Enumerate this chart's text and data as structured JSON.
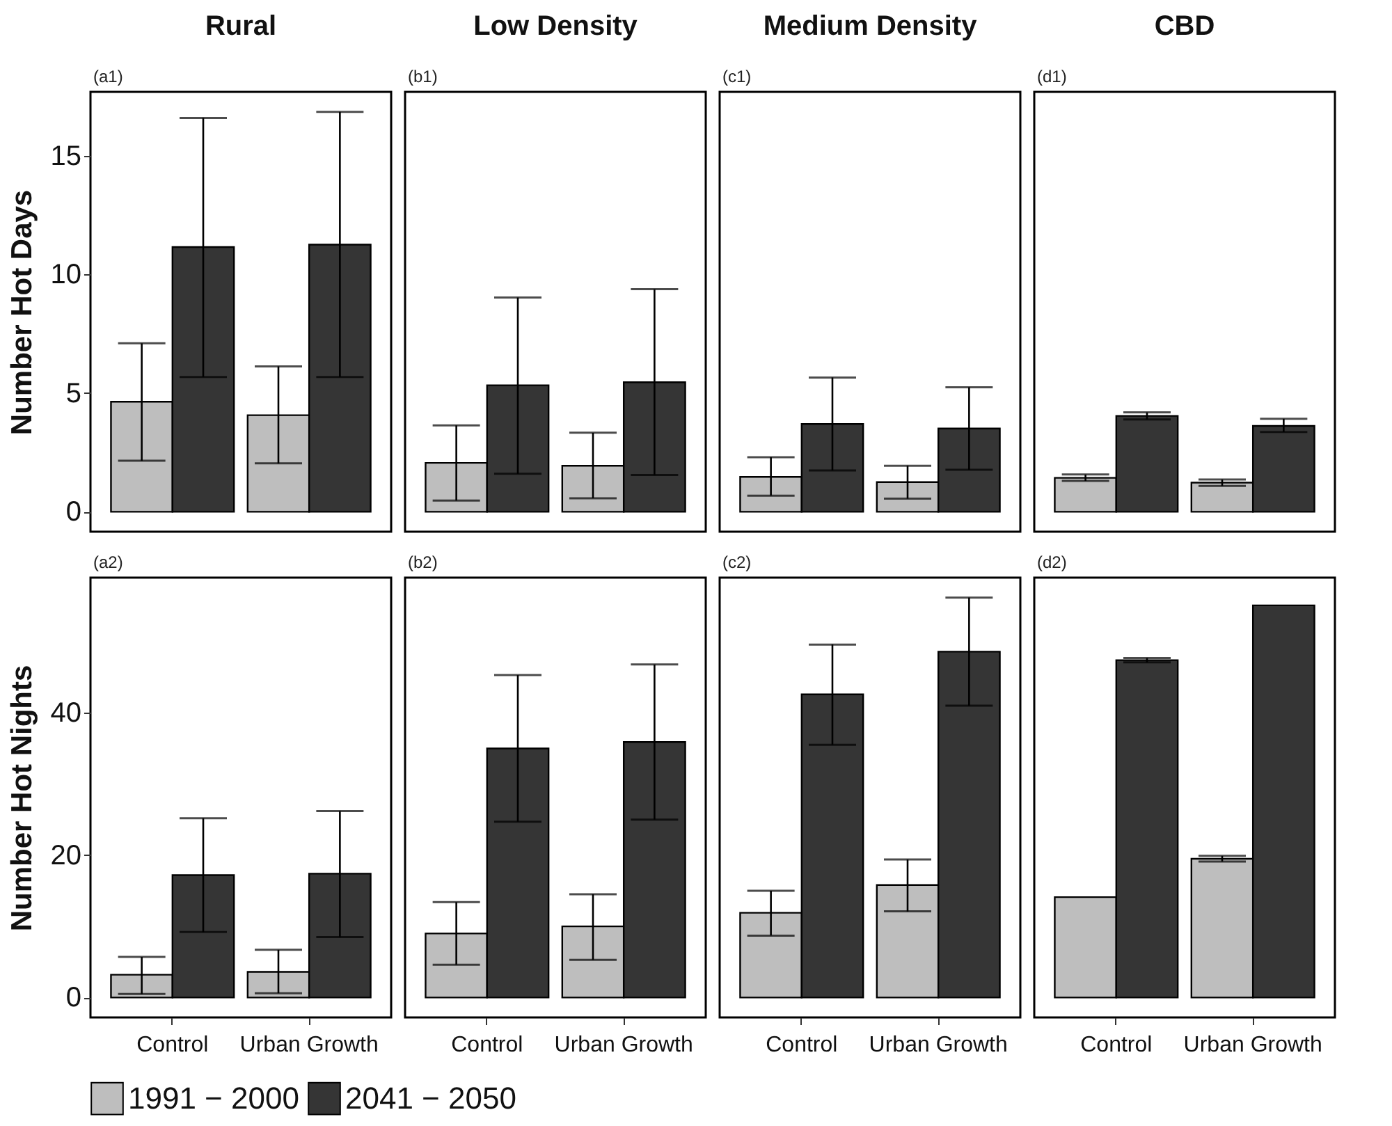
{
  "chart_data": [
    {
      "type": "bar",
      "title": "Rural",
      "ylabel": "Number Hot Days",
      "annotations": [
        "(a1)"
      ],
      "categories": [
        "Control",
        "Urban Growth"
      ],
      "ylim": [
        -0.84,
        17.7
      ],
      "yticks": [
        0,
        5,
        10,
        15
      ],
      "tick_labels": "y",
      "legend": "bottom",
      "series": [
        {
          "name": "1991 − 2000",
          "color": "#bebebe",
          "values": [
            4.64,
            4.07
          ],
          "errors": [
            [
              2.15,
              7.1
            ],
            [
              2.04,
              6.13
            ]
          ]
        },
        {
          "name": "2041 − 2050",
          "color": "#353535",
          "values": [
            11.16,
            11.26
          ],
          "errors": [
            [
              5.68,
              16.6
            ],
            [
              5.68,
              16.86
            ]
          ]
        }
      ]
    },
    {
      "type": "bar",
      "title": "Low Density",
      "annotations": [
        "(b1)"
      ],
      "categories": [
        "Control",
        "Urban Growth"
      ],
      "ylim": [
        -0.84,
        17.7
      ],
      "yticks": [
        0,
        5,
        10,
        15
      ],
      "tick_labels": false,
      "legend": "bottom",
      "series": [
        {
          "name": "1991 − 2000",
          "color": "#bebebe",
          "values": [
            2.06,
            1.94
          ],
          "errors": [
            [
              0.47,
              3.64
            ],
            [
              0.57,
              3.33
            ]
          ]
        },
        {
          "name": "2041 − 2050",
          "color": "#353535",
          "values": [
            5.33,
            5.46
          ],
          "errors": [
            [
              1.6,
              9.03
            ],
            [
              1.55,
              9.38
            ]
          ]
        }
      ]
    },
    {
      "type": "bar",
      "title": "Medium Density",
      "annotations": [
        "(c1)"
      ],
      "categories": [
        "Control",
        "Urban Growth"
      ],
      "ylim": [
        -0.84,
        17.7
      ],
      "yticks": [
        0,
        5,
        10,
        15
      ],
      "tick_labels": false,
      "legend": "bottom",
      "series": [
        {
          "name": "1991 − 2000",
          "color": "#bebebe",
          "values": [
            1.47,
            1.25
          ],
          "errors": [
            [
              0.68,
              2.3
            ],
            [
              0.55,
              1.94
            ]
          ]
        },
        {
          "name": "2041 − 2050",
          "color": "#353535",
          "values": [
            3.7,
            3.51
          ],
          "errors": [
            [
              1.74,
              5.66
            ],
            [
              1.77,
              5.25
            ]
          ]
        }
      ]
    },
    {
      "type": "bar",
      "title": "CBD",
      "annotations": [
        "(d1)"
      ],
      "categories": [
        "Control",
        "Urban Growth"
      ],
      "ylim": [
        -0.84,
        17.7
      ],
      "yticks": [
        0,
        5,
        10,
        15
      ],
      "tick_labels": false,
      "legend": "bottom",
      "series": [
        {
          "name": "1991 − 2000",
          "color": "#bebebe",
          "values": [
            1.43,
            1.23
          ],
          "errors": [
            [
              1.3,
              1.57
            ],
            [
              1.09,
              1.36
            ]
          ]
        },
        {
          "name": "2041 − 2050",
          "color": "#353535",
          "values": [
            4.04,
            3.62
          ],
          "errors": [
            [
              3.89,
              4.19
            ],
            [
              3.36,
              3.92
            ]
          ]
        }
      ]
    },
    {
      "type": "bar",
      "ylabel": "Number Hot Nights",
      "annotations": [
        "(a2)"
      ],
      "categories": [
        "Control",
        "Urban Growth"
      ],
      "ylim": [
        -2.8,
        59.0
      ],
      "yticks": [
        0,
        20,
        40
      ],
      "legend": "bottom",
      "series": [
        {
          "name": "1991 − 2000",
          "color": "#bebebe",
          "values": [
            3.2,
            3.6
          ],
          "errors": [
            [
              0.5,
              5.7
            ],
            [
              0.6,
              6.7
            ]
          ]
        },
        {
          "name": "2041 − 2050",
          "color": "#353535",
          "values": [
            17.2,
            17.4
          ],
          "errors": [
            [
              9.2,
              25.2
            ],
            [
              8.5,
              26.2
            ]
          ]
        }
      ]
    },
    {
      "type": "bar",
      "annotations": [
        "(b2)"
      ],
      "categories": [
        "Control",
        "Urban Growth"
      ],
      "ylim": [
        -2.8,
        59.0
      ],
      "yticks": [
        0,
        20,
        40
      ],
      "tick_labels": "x",
      "legend": "bottom",
      "series": [
        {
          "name": "1991 − 2000",
          "color": "#bebebe",
          "values": [
            9.0,
            10.0
          ],
          "errors": [
            [
              4.6,
              13.4
            ],
            [
              5.3,
              14.5
            ]
          ]
        },
        {
          "name": "2041 − 2050",
          "color": "#353535",
          "values": [
            35.0,
            35.9
          ],
          "errors": [
            [
              24.7,
              45.3
            ],
            [
              25.0,
              46.8
            ]
          ]
        }
      ]
    },
    {
      "type": "bar",
      "annotations": [
        "(c2)"
      ],
      "categories": [
        "Control",
        "Urban Growth"
      ],
      "ylim": [
        -2.8,
        59.0
      ],
      "yticks": [
        0,
        20,
        40
      ],
      "tick_labels": "x",
      "legend": "bottom",
      "series": [
        {
          "name": "1991 − 2000",
          "color": "#bebebe",
          "values": [
            11.9,
            15.8
          ],
          "errors": [
            [
              8.7,
              15.0
            ],
            [
              12.1,
              19.4
            ]
          ]
        },
        {
          "name": "2041 − 2050",
          "color": "#353535",
          "values": [
            42.6,
            48.6
          ],
          "errors": [
            [
              35.5,
              49.6
            ],
            [
              41.0,
              56.2
            ]
          ]
        }
      ]
    },
    {
      "type": "bar",
      "annotations": [
        "(d2)"
      ],
      "categories": [
        "Control",
        "Urban Growth"
      ],
      "ylim": [
        -2.8,
        59.0
      ],
      "yticks": [
        0,
        20,
        40
      ],
      "tick_labels": "x",
      "legend": "bottom",
      "series": [
        {
          "name": "1991 − 2000",
          "color": "#bebebe",
          "values": [
            14.1,
            19.5
          ],
          "errors": [
            null,
            [
              19.1,
              19.9
            ]
          ]
        },
        {
          "name": "2041 − 2050",
          "color": "#353535",
          "values": [
            47.4,
            55.1
          ],
          "errors": [
            [
              47.1,
              47.7
            ],
            null
          ]
        }
      ]
    }
  ]
}
